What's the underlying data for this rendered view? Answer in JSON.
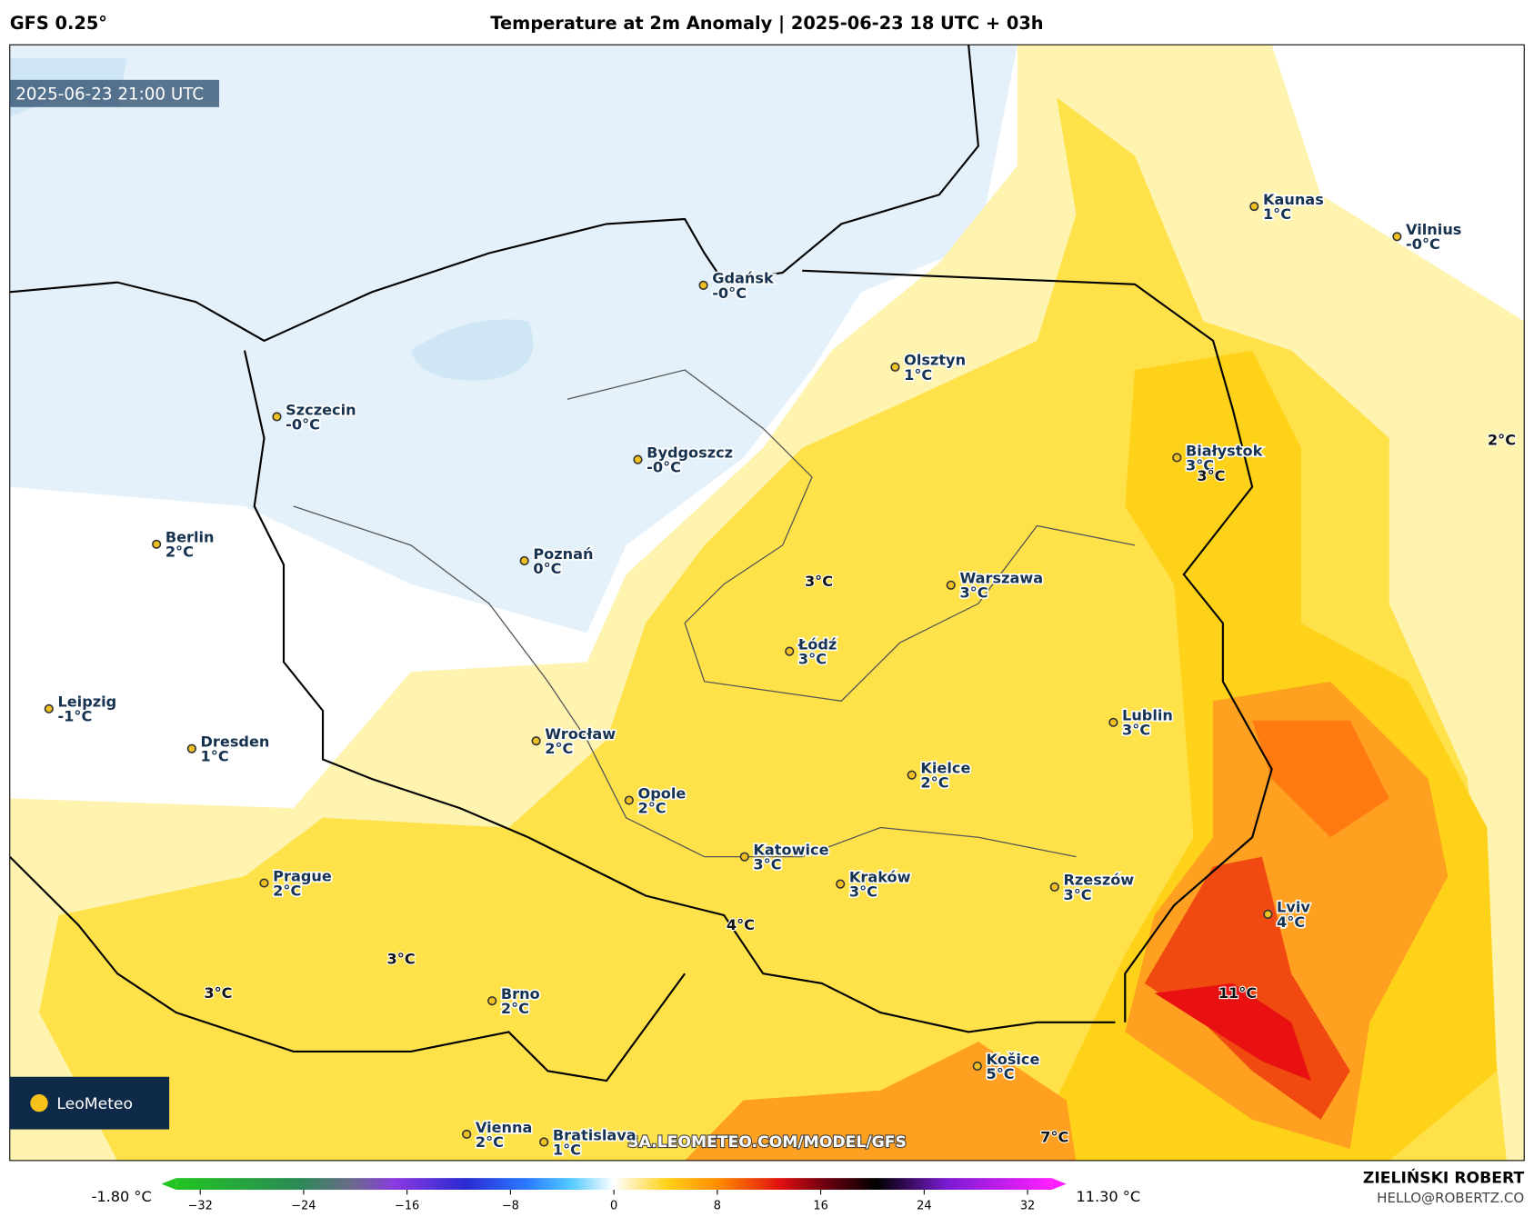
{
  "header": {
    "model": "GFS 0.25°",
    "title": "Temperature at 2m Anomaly | 2025-06-23 18 UTC + 03h"
  },
  "map": {
    "valid_time": "2025-06-23 21:00 UTC",
    "watermark": "SA.LEOMETEO.COM/MODEL/GFS",
    "logo": "LeoMeteo",
    "cities": [
      {
        "name": "Gdańsk",
        "temp": "-0°C"
      },
      {
        "name": "Olsztyn",
        "temp": "1°C"
      },
      {
        "name": "Szczecin",
        "temp": "-0°C"
      },
      {
        "name": "Bydgoszcz",
        "temp": "-0°C"
      },
      {
        "name": "Białystok",
        "temp": "3°C"
      },
      {
        "name": "Kaunas",
        "temp": "1°C"
      },
      {
        "name": "Vilnius",
        "temp": "-0°C"
      },
      {
        "name": "Berlin",
        "temp": "2°C"
      },
      {
        "name": "Poznań",
        "temp": "0°C"
      },
      {
        "name": "Warszawa",
        "temp": "3°C"
      },
      {
        "name": "Łódź",
        "temp": "3°C"
      },
      {
        "name": "Leipzig",
        "temp": "-1°C"
      },
      {
        "name": "Dresden",
        "temp": "1°C"
      },
      {
        "name": "Wrocław",
        "temp": "2°C"
      },
      {
        "name": "Lublin",
        "temp": "3°C"
      },
      {
        "name": "Kielce",
        "temp": "2°C"
      },
      {
        "name": "Opole",
        "temp": "2°C"
      },
      {
        "name": "Katowice",
        "temp": "3°C"
      },
      {
        "name": "Kraków",
        "temp": "3°C"
      },
      {
        "name": "Rzeszów",
        "temp": "3°C"
      },
      {
        "name": "Prague",
        "temp": "2°C"
      },
      {
        "name": "Lviv",
        "temp": "4°C"
      },
      {
        "name": "Brno",
        "temp": "2°C"
      },
      {
        "name": "Košice",
        "temp": "5°C"
      },
      {
        "name": "Vienna",
        "temp": "2°C"
      },
      {
        "name": "Bratislava",
        "temp": "1°C"
      }
    ],
    "extrema": [
      "3°C",
      "3°C",
      "2°C",
      "4°C",
      "3°C",
      "3°C",
      "11°C",
      "7°C"
    ]
  },
  "colorbar": {
    "min_label": "-1.80 °C",
    "max_label": "11.30 °C",
    "range": [
      -35,
      35
    ],
    "ticks": [
      {
        "value": -32,
        "label": "−32"
      },
      {
        "value": -24,
        "label": "−24"
      },
      {
        "value": -16,
        "label": "−16"
      },
      {
        "value": -8,
        "label": "−8"
      },
      0,
      8,
      16,
      24,
      32
    ]
  },
  "credits": {
    "author": "ZIELIŃSKI ROBERT",
    "contact": "HELLO@ROBERTZ.CO"
  }
}
